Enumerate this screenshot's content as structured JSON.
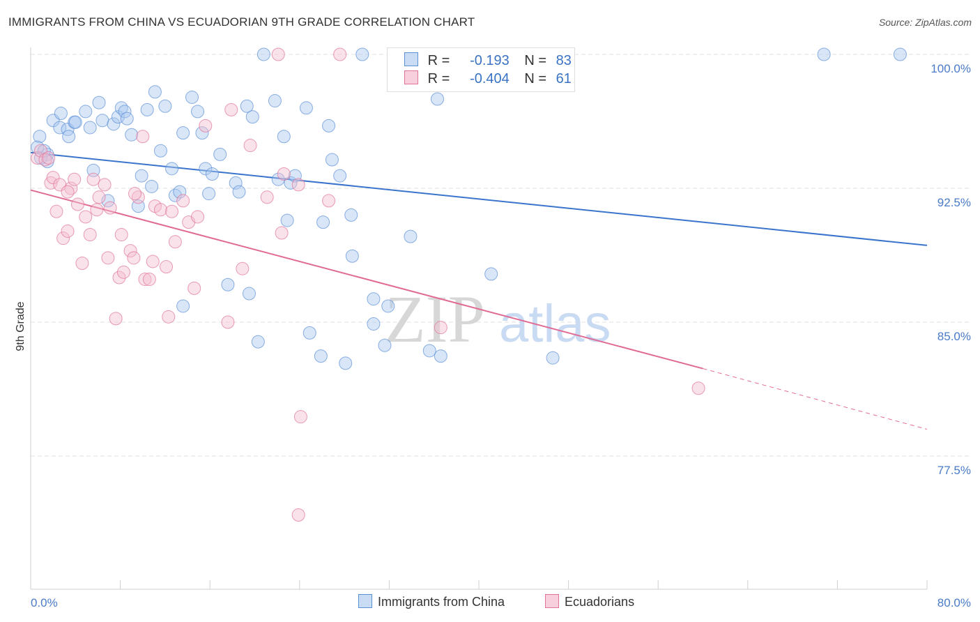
{
  "header": {
    "title": "IMMIGRANTS FROM CHINA VS ECUADORIAN 9TH GRADE CORRELATION CHART",
    "source": "Source: ZipAtlas.com"
  },
  "legend": {
    "blue": {
      "r_label": "R =",
      "r_value": "-0.193",
      "n_label": "N =",
      "n_value": "83"
    },
    "pink": {
      "r_label": "R =",
      "r_value": "-0.404",
      "n_label": "N =",
      "n_value": "61"
    }
  },
  "bottom_legend": {
    "series1": "Immigrants from China",
    "series2": "Ecuadorians"
  },
  "watermark": {
    "zip": "ZIP",
    "atlas": "atlas"
  },
  "colors": {
    "blue": "#5b8fd6",
    "blue_fill": "#a9c8ef",
    "pink": "#e07399",
    "pink_fill": "#f5bfd1",
    "axis_text": "#4a7bc8"
  },
  "chart_data": {
    "type": "scatter",
    "title": "IMMIGRANTS FROM CHINA VS ECUADORIAN 9TH GRADE CORRELATION CHART",
    "xlabel": "",
    "ylabel": "9th Grade",
    "xlim": [
      0,
      80
    ],
    "ylim": [
      70,
      101.5
    ],
    "x_tick_labels": [
      "0.0%",
      "80.0%"
    ],
    "y_ticks": [
      77.5,
      85.0,
      92.5,
      100.0
    ],
    "y_tick_labels": [
      "77.5%",
      "85.0%",
      "92.5%",
      "100.0%"
    ],
    "grid": true,
    "legend_position": "top-center",
    "series": [
      {
        "name": "Immigrants from China",
        "color": "#5b8fd6",
        "trend": {
          "x": [
            0,
            80
          ],
          "y": [
            94.5,
            89.3
          ]
        },
        "points": [
          [
            0.8,
            95.4
          ],
          [
            0.6,
            94.8
          ],
          [
            1.5,
            94.4
          ],
          [
            2.0,
            96.3
          ],
          [
            2.6,
            95.9
          ],
          [
            2.7,
            96.7
          ],
          [
            3.3,
            95.8
          ],
          [
            3.4,
            95.4
          ],
          [
            3.9,
            96.2
          ],
          [
            4.0,
            96.2
          ],
          [
            4.9,
            96.8
          ],
          [
            5.3,
            95.9
          ],
          [
            5.6,
            93.5
          ],
          [
            6.1,
            97.3
          ],
          [
            6.4,
            96.3
          ],
          [
            6.9,
            91.8
          ],
          [
            7.4,
            96.1
          ],
          [
            7.8,
            96.5
          ],
          [
            8.1,
            97.0
          ],
          [
            8.4,
            96.8
          ],
          [
            8.6,
            96.4
          ],
          [
            9.0,
            95.5
          ],
          [
            9.6,
            91.5
          ],
          [
            9.9,
            93.2
          ],
          [
            10.4,
            96.9
          ],
          [
            10.8,
            92.6
          ],
          [
            11.1,
            97.9
          ],
          [
            11.6,
            94.6
          ],
          [
            12.0,
            97.1
          ],
          [
            12.6,
            93.6
          ],
          [
            12.9,
            92.1
          ],
          [
            13.3,
            92.3
          ],
          [
            13.6,
            95.6
          ],
          [
            14.4,
            97.6
          ],
          [
            14.9,
            96.8
          ],
          [
            15.3,
            95.6
          ],
          [
            15.6,
            93.6
          ],
          [
            15.9,
            92.2
          ],
          [
            16.2,
            93.3
          ],
          [
            16.9,
            94.4
          ],
          [
            17.6,
            87.1
          ],
          [
            18.3,
            92.8
          ],
          [
            18.6,
            92.3
          ],
          [
            19.3,
            97.1
          ],
          [
            19.5,
            86.6
          ],
          [
            19.8,
            96.5
          ],
          [
            20.3,
            83.9
          ],
          [
            20.8,
            100.0
          ],
          [
            21.8,
            97.4
          ],
          [
            22.1,
            93.0
          ],
          [
            22.6,
            95.4
          ],
          [
            22.9,
            90.7
          ],
          [
            23.2,
            92.8
          ],
          [
            23.6,
            93.2
          ],
          [
            24.6,
            97.0
          ],
          [
            24.9,
            84.4
          ],
          [
            25.9,
            83.1
          ],
          [
            26.1,
            90.6
          ],
          [
            26.6,
            96.0
          ],
          [
            26.9,
            94.1
          ],
          [
            27.6,
            93.2
          ],
          [
            28.1,
            82.7
          ],
          [
            28.6,
            91.0
          ],
          [
            28.7,
            88.7
          ],
          [
            29.6,
            100.0
          ],
          [
            30.6,
            86.3
          ],
          [
            30.6,
            84.9
          ],
          [
            31.6,
            83.7
          ],
          [
            31.9,
            85.9
          ],
          [
            36.1,
            100.0
          ],
          [
            35.6,
            83.4
          ],
          [
            36.3,
            97.5
          ],
          [
            36.6,
            83.1
          ],
          [
            41.1,
            87.7
          ],
          [
            46.6,
            83.0
          ],
          [
            43.3,
            100.0
          ],
          [
            70.8,
            100.0
          ],
          [
            77.6,
            100.0
          ],
          [
            33.9,
            89.8
          ],
          [
            13.6,
            85.9
          ],
          [
            1.5,
            94.0
          ],
          [
            0.9,
            94.2
          ],
          [
            1.2,
            94.6
          ]
        ]
      },
      {
        "name": "Ecuadorians",
        "color": "#e07399",
        "trend": {
          "x": [
            0,
            60
          ],
          "y": [
            92.4,
            82.4
          ]
        },
        "trend_dashed": {
          "x": [
            60,
            80
          ],
          "y": [
            82.4,
            79.0
          ]
        },
        "points": [
          [
            0.6,
            94.2
          ],
          [
            0.9,
            94.6
          ],
          [
            1.3,
            94.1
          ],
          [
            1.6,
            94.2
          ],
          [
            1.8,
            92.8
          ],
          [
            2.0,
            93.1
          ],
          [
            2.3,
            91.2
          ],
          [
            2.6,
            92.7
          ],
          [
            2.9,
            89.7
          ],
          [
            3.3,
            90.1
          ],
          [
            3.6,
            92.5
          ],
          [
            3.9,
            93.0
          ],
          [
            4.2,
            91.6
          ],
          [
            4.6,
            88.3
          ],
          [
            4.9,
            90.9
          ],
          [
            5.3,
            89.9
          ],
          [
            5.6,
            93.0
          ],
          [
            6.1,
            92.0
          ],
          [
            6.6,
            92.7
          ],
          [
            6.9,
            88.6
          ],
          [
            7.1,
            91.4
          ],
          [
            7.6,
            85.2
          ],
          [
            7.9,
            87.5
          ],
          [
            8.1,
            89.9
          ],
          [
            8.3,
            87.8
          ],
          [
            8.9,
            89.0
          ],
          [
            9.2,
            88.6
          ],
          [
            9.6,
            92.0
          ],
          [
            10.0,
            95.4
          ],
          [
            10.2,
            87.4
          ],
          [
            10.6,
            87.4
          ],
          [
            11.1,
            91.5
          ],
          [
            11.6,
            91.3
          ],
          [
            12.1,
            88.1
          ],
          [
            12.3,
            85.3
          ],
          [
            12.6,
            91.2
          ],
          [
            12.9,
            89.5
          ],
          [
            13.6,
            91.8
          ],
          [
            14.1,
            90.6
          ],
          [
            14.6,
            86.9
          ],
          [
            14.9,
            90.9
          ],
          [
            15.6,
            96.0
          ],
          [
            17.6,
            85.0
          ],
          [
            17.9,
            96.9
          ],
          [
            18.9,
            88.0
          ],
          [
            19.6,
            94.9
          ],
          [
            21.1,
            92.0
          ],
          [
            22.1,
            100.0
          ],
          [
            22.4,
            90.0
          ],
          [
            22.6,
            93.3
          ],
          [
            23.9,
            92.7
          ],
          [
            26.6,
            91.8
          ],
          [
            27.6,
            100.0
          ],
          [
            36.6,
            84.7
          ],
          [
            59.6,
            81.3
          ],
          [
            24.1,
            79.7
          ],
          [
            23.9,
            74.2
          ],
          [
            3.3,
            92.3
          ],
          [
            5.9,
            91.3
          ],
          [
            9.3,
            92.2
          ],
          [
            10.9,
            88.4
          ]
        ]
      }
    ]
  }
}
